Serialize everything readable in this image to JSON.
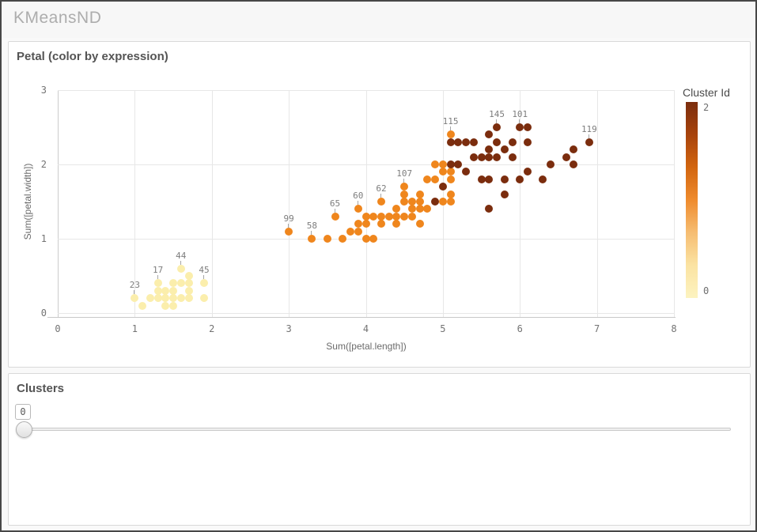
{
  "window": {
    "title": "KMeansND"
  },
  "scatter_panel": {
    "title": "Petal (color by expression)",
    "x_axis": {
      "label": "Sum([petal.length])"
    },
    "y_axis": {
      "label": "Sum([petal.width])"
    },
    "legend": {
      "title": "Cluster Id",
      "max_label": "2",
      "min_label": "0"
    }
  },
  "clusters_panel": {
    "title": "Clusters",
    "slider": {
      "value": "0"
    }
  },
  "chart_data": {
    "type": "scatter",
    "title": "Petal (color by expression)",
    "xlabel": "Sum([petal.length])",
    "ylabel": "Sum([petal.width])",
    "xlim": [
      0,
      8
    ],
    "ylim": [
      0,
      3
    ],
    "x_ticks": [
      0,
      1,
      2,
      3,
      4,
      5,
      6,
      7,
      8
    ],
    "y_ticks": [
      0,
      1,
      2,
      3
    ],
    "grid": true,
    "legend_position": "right",
    "color_by": "Cluster Id",
    "cluster_colors": {
      "0": "#fbeeac",
      "1": "#ef861d",
      "2": "#7b2d0e"
    },
    "legend_gradient": [
      "#7b2d0e",
      "#a8430c",
      "#d2650f",
      "#ef8b2d",
      "#f6bd72",
      "#fbe3a2",
      "#fcf3c0"
    ],
    "points": [
      [
        1.0,
        0.2,
        0
      ],
      [
        1.1,
        0.1,
        0
      ],
      [
        1.2,
        0.2,
        0
      ],
      [
        1.3,
        0.2,
        0
      ],
      [
        1.3,
        0.3,
        0
      ],
      [
        1.3,
        0.4,
        0
      ],
      [
        1.4,
        0.1,
        0
      ],
      [
        1.4,
        0.2,
        0
      ],
      [
        1.4,
        0.3,
        0
      ],
      [
        1.5,
        0.1,
        0
      ],
      [
        1.5,
        0.2,
        0
      ],
      [
        1.5,
        0.3,
        0
      ],
      [
        1.5,
        0.4,
        0
      ],
      [
        1.6,
        0.2,
        0
      ],
      [
        1.6,
        0.4,
        0
      ],
      [
        1.6,
        0.6,
        0
      ],
      [
        1.7,
        0.2,
        0
      ],
      [
        1.7,
        0.3,
        0
      ],
      [
        1.7,
        0.4,
        0
      ],
      [
        1.7,
        0.5,
        0
      ],
      [
        1.9,
        0.2,
        0
      ],
      [
        1.9,
        0.4,
        0
      ],
      [
        3.0,
        1.1,
        1
      ],
      [
        3.3,
        1.0,
        1
      ],
      [
        3.5,
        1.0,
        1
      ],
      [
        3.6,
        1.3,
        1
      ],
      [
        3.7,
        1.0,
        1
      ],
      [
        3.8,
        1.1,
        1
      ],
      [
        3.9,
        1.1,
        1
      ],
      [
        3.9,
        1.2,
        1
      ],
      [
        3.9,
        1.4,
        1
      ],
      [
        4.0,
        1.0,
        1
      ],
      [
        4.0,
        1.2,
        1
      ],
      [
        4.0,
        1.3,
        1
      ],
      [
        4.1,
        1.0,
        1
      ],
      [
        4.1,
        1.3,
        1
      ],
      [
        4.2,
        1.2,
        1
      ],
      [
        4.2,
        1.3,
        1
      ],
      [
        4.2,
        1.5,
        1
      ],
      [
        4.3,
        1.3,
        1
      ],
      [
        4.4,
        1.2,
        1
      ],
      [
        4.4,
        1.3,
        1
      ],
      [
        4.4,
        1.4,
        1
      ],
      [
        4.5,
        1.3,
        1
      ],
      [
        4.5,
        1.5,
        1
      ],
      [
        4.5,
        1.6,
        1
      ],
      [
        4.5,
        1.7,
        1
      ],
      [
        4.6,
        1.3,
        1
      ],
      [
        4.6,
        1.4,
        1
      ],
      [
        4.6,
        1.5,
        1
      ],
      [
        4.7,
        1.2,
        1
      ],
      [
        4.7,
        1.4,
        1
      ],
      [
        4.7,
        1.5,
        1
      ],
      [
        4.7,
        1.6,
        1
      ],
      [
        4.8,
        1.4,
        1
      ],
      [
        4.8,
        1.8,
        1
      ],
      [
        4.9,
        1.8,
        1
      ],
      [
        4.9,
        2.0,
        1
      ],
      [
        5.0,
        1.5,
        1
      ],
      [
        5.0,
        1.9,
        1
      ],
      [
        5.0,
        2.0,
        1
      ],
      [
        5.1,
        1.5,
        1
      ],
      [
        5.1,
        1.6,
        1
      ],
      [
        5.1,
        1.8,
        1
      ],
      [
        5.1,
        1.9,
        1
      ],
      [
        5.1,
        2.4,
        1
      ],
      [
        4.9,
        1.5,
        2
      ],
      [
        5.0,
        1.7,
        2
      ],
      [
        5.1,
        2.0,
        2
      ],
      [
        5.1,
        2.3,
        2
      ],
      [
        5.2,
        2.0,
        2
      ],
      [
        5.2,
        2.3,
        2
      ],
      [
        5.3,
        1.9,
        2
      ],
      [
        5.3,
        2.3,
        2
      ],
      [
        5.4,
        2.1,
        2
      ],
      [
        5.4,
        2.3,
        2
      ],
      [
        5.5,
        1.8,
        2
      ],
      [
        5.5,
        2.1,
        2
      ],
      [
        5.6,
        1.4,
        2
      ],
      [
        5.6,
        1.8,
        2
      ],
      [
        5.6,
        2.1,
        2
      ],
      [
        5.6,
        2.2,
        2
      ],
      [
        5.6,
        2.4,
        2
      ],
      [
        5.7,
        2.1,
        2
      ],
      [
        5.7,
        2.3,
        2
      ],
      [
        5.7,
        2.5,
        2
      ],
      [
        5.8,
        1.6,
        2
      ],
      [
        5.8,
        1.8,
        2
      ],
      [
        5.8,
        2.2,
        2
      ],
      [
        5.9,
        2.1,
        2
      ],
      [
        5.9,
        2.3,
        2
      ],
      [
        6.0,
        1.8,
        2
      ],
      [
        6.0,
        2.5,
        2
      ],
      [
        6.1,
        1.9,
        2
      ],
      [
        6.1,
        2.3,
        2
      ],
      [
        6.1,
        2.5,
        2
      ],
      [
        6.3,
        1.8,
        2
      ],
      [
        6.4,
        2.0,
        2
      ],
      [
        6.6,
        2.1,
        2
      ],
      [
        6.7,
        2.0,
        2
      ],
      [
        6.7,
        2.2,
        2
      ],
      [
        6.9,
        2.3,
        2
      ]
    ],
    "point_labels": [
      {
        "text": "23",
        "x": 1.0,
        "y": 0.2
      },
      {
        "text": "17",
        "x": 1.3,
        "y": 0.4
      },
      {
        "text": "44",
        "x": 1.6,
        "y": 0.6
      },
      {
        "text": "45",
        "x": 1.9,
        "y": 0.4
      },
      {
        "text": "99",
        "x": 3.0,
        "y": 1.1
      },
      {
        "text": "58",
        "x": 3.3,
        "y": 1.0
      },
      {
        "text": "65",
        "x": 3.6,
        "y": 1.3
      },
      {
        "text": "60",
        "x": 3.9,
        "y": 1.4
      },
      {
        "text": "62",
        "x": 4.2,
        "y": 1.5
      },
      {
        "text": "107",
        "x": 4.5,
        "y": 1.7
      },
      {
        "text": "115",
        "x": 5.1,
        "y": 2.4
      },
      {
        "text": "145",
        "x": 5.7,
        "y": 2.5
      },
      {
        "text": "101",
        "x": 6.0,
        "y": 2.5
      },
      {
        "text": "119",
        "x": 6.9,
        "y": 2.3
      }
    ]
  }
}
